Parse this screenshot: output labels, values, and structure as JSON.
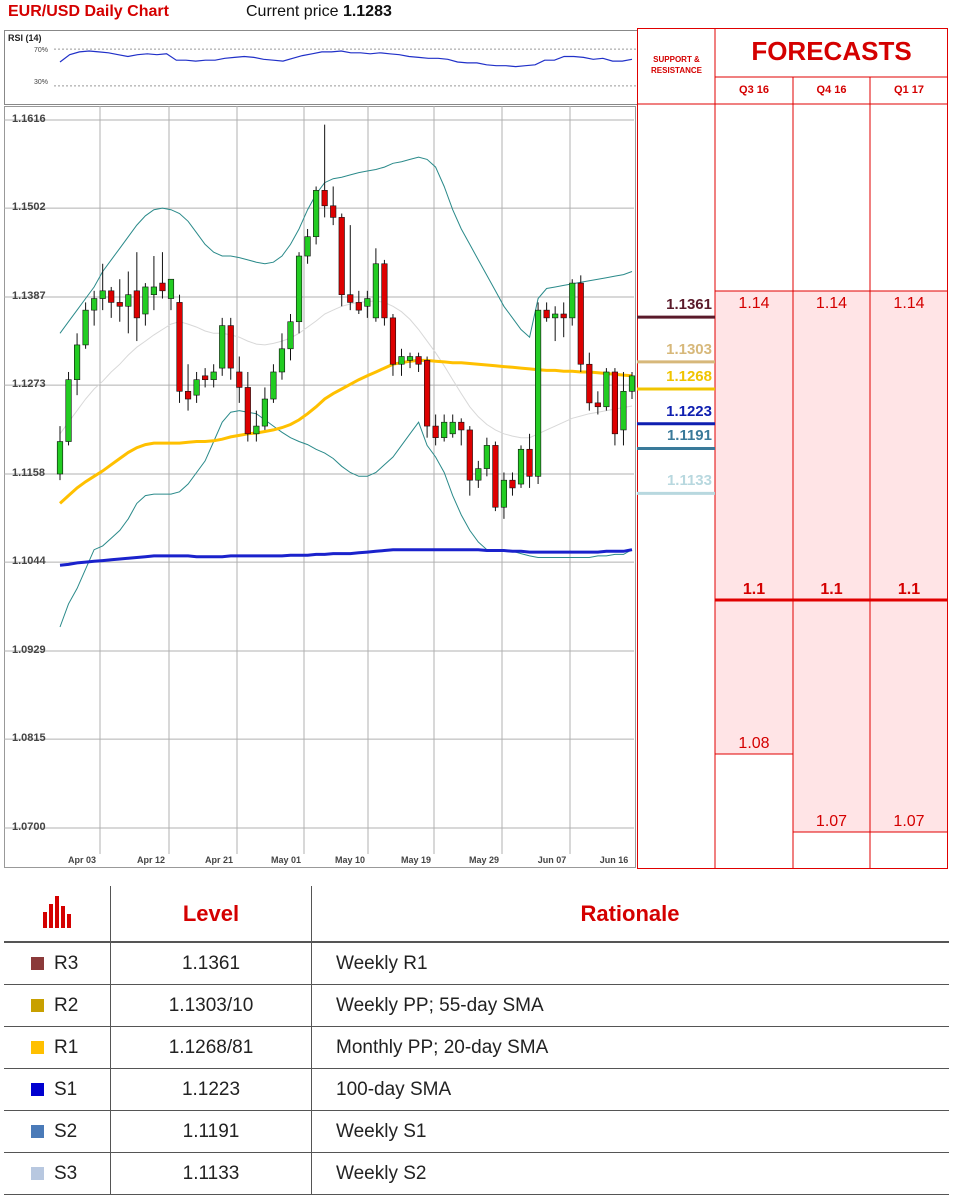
{
  "header": {
    "title": "EUR/USD Daily Chart",
    "price_label": "Current price",
    "price_value": "1.1283"
  },
  "rsi": {
    "title": "RSI (14)",
    "level_high": "70%",
    "level_low": "30%",
    "values": [
      56,
      64,
      67,
      68,
      67,
      66,
      64,
      62,
      64,
      65,
      64,
      65,
      58,
      58,
      57,
      58,
      58,
      60,
      61,
      62,
      61,
      59,
      58,
      57,
      60,
      63,
      65,
      67,
      67,
      68,
      66,
      66,
      65,
      66,
      65,
      64,
      62,
      61,
      60,
      60,
      59,
      56,
      55,
      55,
      53,
      52,
      52,
      51,
      52,
      53,
      58,
      58,
      62,
      62,
      61,
      59,
      60,
      57,
      57,
      59
    ]
  },
  "side_panel": {
    "sr_label": "SUPPORT & RESISTANCE",
    "forecast_title": "FORECASTS",
    "quarters": [
      "Q3 16",
      "Q4 16",
      "Q1 17"
    ],
    "forecast_top": [
      "1.14",
      "1.14",
      "1.14"
    ],
    "forecast_mid": [
      "1.1",
      "1.1",
      "1.1"
    ],
    "forecast_low": [
      "1.08",
      "1.07",
      "1.07"
    ],
    "levels": [
      {
        "value": "1.1361",
        "color": "#5a1a2a"
      },
      {
        "value": "1.1303",
        "color": "#d7b87a"
      },
      {
        "value": "1.1268",
        "color": "#f0c400"
      },
      {
        "value": "1.1223",
        "color": "#0f1fb0"
      },
      {
        "value": "1.1191",
        "color": "#3a7a9a"
      },
      {
        "value": "1.1133",
        "color": "#b8d8df"
      }
    ]
  },
  "table": {
    "headers": {
      "level": "Level",
      "rationale": "Rationale"
    },
    "rows": [
      {
        "name": "R3",
        "level": "1.1361",
        "rationale": "Weekly R1",
        "color": "#8b3a3a"
      },
      {
        "name": "R2",
        "level": "1.1303/10",
        "rationale": "Weekly PP; 55-day SMA",
        "color": "#c8a000"
      },
      {
        "name": "R1",
        "level": "1.1268/81",
        "rationale": "Monthly PP; 20-day SMA",
        "color": "#ffc000"
      },
      {
        "name": "S1",
        "level": "1.1223",
        "rationale": "100-day SMA",
        "color": "#0000d0"
      },
      {
        "name": "S2",
        "level": "1.1191",
        "rationale": "Weekly S1",
        "color": "#4a7ab8"
      },
      {
        "name": "S3",
        "level": "1.1133",
        "rationale": "Weekly S2",
        "color": "#b8c8e0"
      }
    ]
  },
  "chart_data": {
    "type": "candlestick",
    "title": "EUR/USD Daily Chart",
    "ylim": [
      1.07,
      1.1616
    ],
    "y_ticks": [
      "1.1616",
      "1.1502",
      "1.1387",
      "1.1273",
      "1.1158",
      "1.1044",
      "1.0929",
      "1.0815",
      "1.0700"
    ],
    "x_ticks": [
      "Apr 03",
      "Apr 12",
      "Apr 21",
      "May 01",
      "May 10",
      "May 19",
      "May 29",
      "Jun 07",
      "Jun 16"
    ],
    "grid": true,
    "candles": [
      {
        "o": 1.1158,
        "h": 1.122,
        "l": 1.115,
        "c": 1.12
      },
      {
        "o": 1.12,
        "h": 1.129,
        "l": 1.1195,
        "c": 1.128
      },
      {
        "o": 1.128,
        "h": 1.134,
        "l": 1.126,
        "c": 1.1325
      },
      {
        "o": 1.1325,
        "h": 1.138,
        "l": 1.132,
        "c": 1.137
      },
      {
        "o": 1.137,
        "h": 1.1395,
        "l": 1.135,
        "c": 1.1385
      },
      {
        "o": 1.1385,
        "h": 1.143,
        "l": 1.137,
        "c": 1.1395
      },
      {
        "o": 1.1395,
        "h": 1.14,
        "l": 1.136,
        "c": 1.138
      },
      {
        "o": 1.138,
        "h": 1.141,
        "l": 1.1355,
        "c": 1.1375
      },
      {
        "o": 1.1375,
        "h": 1.142,
        "l": 1.134,
        "c": 1.139
      },
      {
        "o": 1.1395,
        "h": 1.1445,
        "l": 1.133,
        "c": 1.136
      },
      {
        "o": 1.1365,
        "h": 1.1405,
        "l": 1.135,
        "c": 1.14
      },
      {
        "o": 1.139,
        "h": 1.144,
        "l": 1.137,
        "c": 1.14
      },
      {
        "o": 1.1405,
        "h": 1.1445,
        "l": 1.1385,
        "c": 1.1395
      },
      {
        "o": 1.1385,
        "h": 1.141,
        "l": 1.137,
        "c": 1.141
      },
      {
        "o": 1.138,
        "h": 1.139,
        "l": 1.125,
        "c": 1.1265
      },
      {
        "o": 1.1265,
        "h": 1.13,
        "l": 1.124,
        "c": 1.1255
      },
      {
        "o": 1.126,
        "h": 1.129,
        "l": 1.125,
        "c": 1.128
      },
      {
        "o": 1.1285,
        "h": 1.1295,
        "l": 1.127,
        "c": 1.128
      },
      {
        "o": 1.128,
        "h": 1.13,
        "l": 1.127,
        "c": 1.129
      },
      {
        "o": 1.1295,
        "h": 1.136,
        "l": 1.1285,
        "c": 1.135
      },
      {
        "o": 1.135,
        "h": 1.136,
        "l": 1.128,
        "c": 1.1295
      },
      {
        "o": 1.129,
        "h": 1.131,
        "l": 1.125,
        "c": 1.127
      },
      {
        "o": 1.127,
        "h": 1.129,
        "l": 1.12,
        "c": 1.121
      },
      {
        "o": 1.121,
        "h": 1.124,
        "l": 1.12,
        "c": 1.122
      },
      {
        "o": 1.122,
        "h": 1.127,
        "l": 1.1215,
        "c": 1.1255
      },
      {
        "o": 1.1255,
        "h": 1.13,
        "l": 1.125,
        "c": 1.129
      },
      {
        "o": 1.129,
        "h": 1.134,
        "l": 1.128,
        "c": 1.132
      },
      {
        "o": 1.132,
        "h": 1.1365,
        "l": 1.1305,
        "c": 1.1355
      },
      {
        "o": 1.1355,
        "h": 1.1445,
        "l": 1.134,
        "c": 1.144
      },
      {
        "o": 1.144,
        "h": 1.1475,
        "l": 1.143,
        "c": 1.1465
      },
      {
        "o": 1.1465,
        "h": 1.153,
        "l": 1.1455,
        "c": 1.1525
      },
      {
        "o": 1.1525,
        "h": 1.161,
        "l": 1.149,
        "c": 1.1505
      },
      {
        "o": 1.1505,
        "h": 1.153,
        "l": 1.148,
        "c": 1.149
      },
      {
        "o": 1.149,
        "h": 1.1495,
        "l": 1.1375,
        "c": 1.139
      },
      {
        "o": 1.139,
        "h": 1.148,
        "l": 1.137,
        "c": 1.138
      },
      {
        "o": 1.138,
        "h": 1.1395,
        "l": 1.1365,
        "c": 1.137
      },
      {
        "o": 1.1375,
        "h": 1.1395,
        "l": 1.136,
        "c": 1.1385
      },
      {
        "o": 1.136,
        "h": 1.145,
        "l": 1.1355,
        "c": 1.143
      },
      {
        "o": 1.143,
        "h": 1.1435,
        "l": 1.135,
        "c": 1.136
      },
      {
        "o": 1.136,
        "h": 1.1365,
        "l": 1.1285,
        "c": 1.13
      },
      {
        "o": 1.13,
        "h": 1.132,
        "l": 1.1285,
        "c": 1.131
      },
      {
        "o": 1.1305,
        "h": 1.1315,
        "l": 1.1295,
        "c": 1.131
      },
      {
        "o": 1.131,
        "h": 1.1315,
        "l": 1.129,
        "c": 1.13
      },
      {
        "o": 1.1305,
        "h": 1.131,
        "l": 1.1205,
        "c": 1.122
      },
      {
        "o": 1.122,
        "h": 1.1235,
        "l": 1.1195,
        "c": 1.1205
      },
      {
        "o": 1.1205,
        "h": 1.1235,
        "l": 1.12,
        "c": 1.1225
      },
      {
        "o": 1.121,
        "h": 1.1235,
        "l": 1.1205,
        "c": 1.1225
      },
      {
        "o": 1.1225,
        "h": 1.123,
        "l": 1.1195,
        "c": 1.1215
      },
      {
        "o": 1.1215,
        "h": 1.122,
        "l": 1.113,
        "c": 1.115
      },
      {
        "o": 1.115,
        "h": 1.1175,
        "l": 1.114,
        "c": 1.1165
      },
      {
        "o": 1.1165,
        "h": 1.1205,
        "l": 1.1155,
        "c": 1.1195
      },
      {
        "o": 1.1195,
        "h": 1.12,
        "l": 1.111,
        "c": 1.1115
      },
      {
        "o": 1.1115,
        "h": 1.116,
        "l": 1.11,
        "c": 1.115
      },
      {
        "o": 1.115,
        "h": 1.116,
        "l": 1.113,
        "c": 1.114
      },
      {
        "o": 1.1145,
        "h": 1.1195,
        "l": 1.114,
        "c": 1.119
      },
      {
        "o": 1.119,
        "h": 1.121,
        "l": 1.114,
        "c": 1.1155
      },
      {
        "o": 1.1155,
        "h": 1.138,
        "l": 1.1145,
        "c": 1.137
      },
      {
        "o": 1.137,
        "h": 1.138,
        "l": 1.1355,
        "c": 1.136
      },
      {
        "o": 1.136,
        "h": 1.1375,
        "l": 1.133,
        "c": 1.1365
      },
      {
        "o": 1.1365,
        "h": 1.138,
        "l": 1.1335,
        "c": 1.136
      },
      {
        "o": 1.136,
        "h": 1.141,
        "l": 1.135,
        "c": 1.1405
      },
      {
        "o": 1.1405,
        "h": 1.1415,
        "l": 1.129,
        "c": 1.13
      },
      {
        "o": 1.13,
        "h": 1.1315,
        "l": 1.124,
        "c": 1.125
      },
      {
        "o": 1.125,
        "h": 1.1265,
        "l": 1.1235,
        "c": 1.1245
      },
      {
        "o": 1.1245,
        "h": 1.1295,
        "l": 1.124,
        "c": 1.129
      },
      {
        "o": 1.129,
        "h": 1.1295,
        "l": 1.1195,
        "c": 1.121
      },
      {
        "o": 1.1215,
        "h": 1.129,
        "l": 1.1195,
        "c": 1.1265
      },
      {
        "o": 1.1265,
        "h": 1.129,
        "l": 1.1255,
        "c": 1.1285
      }
    ],
    "sma20": [
      1.121,
      1.1225,
      1.124,
      1.1255,
      1.1268,
      1.1278,
      1.129,
      1.13,
      1.1312,
      1.1322,
      1.133,
      1.1338,
      1.1345,
      1.1352,
      1.1355,
      1.1352,
      1.1348,
      1.1343,
      1.134,
      1.134,
      1.1338,
      1.1335,
      1.133,
      1.1326,
      1.1325,
      1.1327,
      1.133,
      1.1334,
      1.134,
      1.1348,
      1.1356,
      1.1365,
      1.137,
      1.1375,
      1.1378,
      1.138,
      1.1381,
      1.1382,
      1.138,
      1.1375,
      1.1368,
      1.1358,
      1.1345,
      1.133,
      1.1315,
      1.1298,
      1.128,
      1.1262,
      1.1245,
      1.1232,
      1.1222,
      1.1215,
      1.121,
      1.1207,
      1.1205,
      1.1205,
      1.121,
      1.1215,
      1.122,
      1.1225,
      1.123,
      1.1233,
      1.1236,
      1.1238,
      1.124,
      1.1242,
      1.1244,
      1.1246
    ],
    "sma55": [
      1.112,
      1.113,
      1.114,
      1.1148,
      1.1155,
      1.1162,
      1.117,
      1.1178,
      1.1186,
      1.1192,
      1.1196,
      1.1198,
      1.1198,
      1.1198,
      1.1198,
      1.1199,
      1.12,
      1.12,
      1.1201,
      1.1203,
      1.1206,
      1.1208,
      1.121,
      1.1211,
      1.1213,
      1.1215,
      1.1218,
      1.1222,
      1.1228,
      1.1236,
      1.1245,
      1.1255,
      1.1262,
      1.1268,
      1.1274,
      1.128,
      1.1285,
      1.129,
      1.1295,
      1.13,
      1.1302,
      1.1304,
      1.1305,
      1.1305,
      1.1304,
      1.1303,
      1.1302,
      1.1302,
      1.1301,
      1.13,
      1.1299,
      1.1298,
      1.1297,
      1.1296,
      1.1295,
      1.1294,
      1.1293,
      1.1292,
      1.1292,
      1.1291,
      1.1291,
      1.129,
      1.129,
      1.1289,
      1.1288,
      1.1287,
      1.1286,
      1.1285
    ],
    "sma100": [
      1.104,
      1.1041,
      1.1043,
      1.1044,
      1.1045,
      1.1046,
      1.1047,
      1.1048,
      1.1049,
      1.105,
      1.1051,
      1.1052,
      1.1052,
      1.1052,
      1.1052,
      1.1052,
      1.1051,
      1.1051,
      1.1051,
      1.1051,
      1.1052,
      1.1052,
      1.1052,
      1.1052,
      1.1052,
      1.1052,
      1.1052,
      1.1053,
      1.1053,
      1.1053,
      1.1054,
      1.1054,
      1.1055,
      1.1055,
      1.1055,
      1.1056,
      1.1057,
      1.1058,
      1.1059,
      1.106,
      1.106,
      1.106,
      1.106,
      1.106,
      1.106,
      1.106,
      1.106,
      1.106,
      1.106,
      1.106,
      1.1059,
      1.1059,
      1.1059,
      1.1058,
      1.1058,
      1.1057,
      1.1057,
      1.1057,
      1.1057,
      1.1057,
      1.1057,
      1.1057,
      1.1057,
      1.1057,
      1.1058,
      1.1058,
      1.1058,
      1.106
    ],
    "bb_upper": [
      1.134,
      1.1355,
      1.137,
      1.1385,
      1.14,
      1.142,
      1.1435,
      1.145,
      1.1465,
      1.148,
      1.1492,
      1.15,
      1.1502,
      1.15,
      1.1495,
      1.1485,
      1.147,
      1.1455,
      1.1445,
      1.144,
      1.144,
      1.1438,
      1.1435,
      1.1432,
      1.143,
      1.1432,
      1.144,
      1.1455,
      1.1475,
      1.15,
      1.152,
      1.1535,
      1.154,
      1.1542,
      1.1545,
      1.1548,
      1.155,
      1.1552,
      1.1555,
      1.156,
      1.1562,
      1.1565,
      1.1568,
      1.1565,
      1.1555,
      1.153,
      1.15,
      1.1475,
      1.1455,
      1.1435,
      1.1415,
      1.1395,
      1.1375,
      1.136,
      1.1345,
      1.1335,
      1.1385,
      1.1398,
      1.14,
      1.1402,
      1.1404,
      1.1406,
      1.1408,
      1.141,
      1.1412,
      1.1414,
      1.1416,
      1.142
    ],
    "bb_lower": [
      1.096,
      1.099,
      1.101,
      1.1035,
      1.106,
      1.1065,
      1.1075,
      1.1085,
      1.11,
      1.112,
      1.113,
      1.1132,
      1.1132,
      1.1132,
      1.1135,
      1.1145,
      1.116,
      1.1175,
      1.12,
      1.1225,
      1.1238,
      1.124,
      1.1238,
      1.1236,
      1.1228,
      1.122,
      1.1212,
      1.1205,
      1.12,
      1.1196,
      1.119,
      1.1185,
      1.1178,
      1.1168,
      1.116,
      1.1155,
      1.1155,
      1.116,
      1.117,
      1.118,
      1.1195,
      1.121,
      1.1225,
      1.1195,
      1.118,
      1.116,
      1.113,
      1.1105,
      1.1085,
      1.107,
      1.106,
      1.1058,
      1.1058,
      1.1058,
      1.1055,
      1.1052,
      1.105,
      1.105,
      1.105,
      1.105,
      1.105,
      1.105,
      1.105,
      1.1052,
      1.1052,
      1.1054,
      1.1054,
      1.106
    ]
  }
}
